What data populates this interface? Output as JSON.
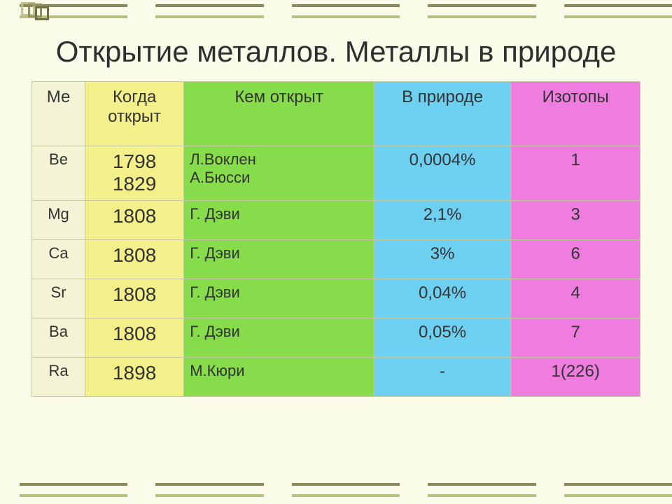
{
  "title": "Открытие металлов. Металлы в природе",
  "palette": {
    "bg": "#fbfbe9",
    "border": "#c5c9a1",
    "col_me": "#f3f3d5",
    "col_yr": "#f3f08c",
    "col_who": "#86dc4b",
    "col_nat": "#6ed0f0",
    "col_iso": "#ef7de0",
    "stripe_dark": "#8a8a5a",
    "stripe_light": "#babf84",
    "icon_sq1": "#bfc28a",
    "icon_sq2": "#8f9160",
    "icon_sq3": "#6f7045"
  },
  "columns": [
    {
      "key": "me",
      "label": "Ме",
      "css": "c-me"
    },
    {
      "key": "yr",
      "label": "Когда открыт",
      "css": "c-yr"
    },
    {
      "key": "who",
      "label": "Кем открыт",
      "css": "c-who"
    },
    {
      "key": "nat",
      "label": "В природе",
      "css": "c-nat"
    },
    {
      "key": "iso",
      "label": "Изотопы",
      "css": "c-iso"
    }
  ],
  "rows": [
    {
      "me": "Be",
      "yr": "1798\n1829",
      "who": "Л.Воклен\nА.Бюсси",
      "nat": "0,0004%",
      "iso": "1",
      "tall": true
    },
    {
      "me": "Mg",
      "yr": "1808",
      "who": "Г. Дэви",
      "nat": "2,1%",
      "iso": "3"
    },
    {
      "me": "Ca",
      "yr": "1808",
      "who": "Г. Дэви",
      "nat": "3%",
      "iso": "6"
    },
    {
      "me": "Sr",
      "yr": "1808",
      "who": "Г. Дэви",
      "nat": "0,04%",
      "iso": "4"
    },
    {
      "me": "Ba",
      "yr": "1808",
      "who": "Г. Дэви",
      "nat": "0,05%",
      "iso": "7"
    },
    {
      "me": "Ra",
      "yr": "1898",
      "who": "М.Кюри",
      "nat": "-",
      "iso": "1(226)"
    }
  ]
}
